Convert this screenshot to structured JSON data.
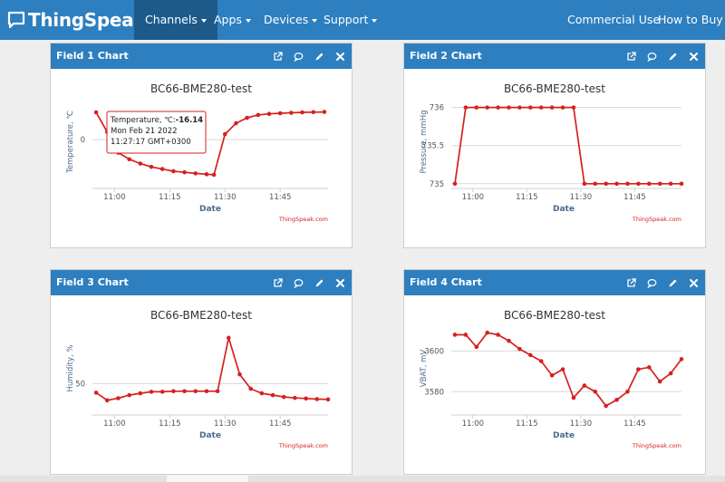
{
  "nav": {
    "brand": "ThingSpeak",
    "tm": "™",
    "items": [
      {
        "label": "Channels",
        "dropdown": true,
        "active": true
      },
      {
        "label": "Apps",
        "dropdown": true,
        "active": false
      },
      {
        "label": "Devices",
        "dropdown": true,
        "active": false
      },
      {
        "label": "Support",
        "dropdown": true,
        "active": false
      }
    ],
    "right": [
      {
        "label": "Commercial Use"
      },
      {
        "label": "How to Buy"
      }
    ]
  },
  "colors": {
    "nav": "#2d7fbf",
    "nav_active": "#1d5a8a",
    "series": "#d62020",
    "axis_text": "#4a6a8a"
  },
  "icons": [
    "external-link-icon",
    "comment-icon",
    "pencil-icon",
    "close-icon"
  ],
  "panels": [
    {
      "title": "Field 1 Chart",
      "chart_data": {
        "type": "line",
        "title": "BC66-BME280-test",
        "xlabel": "Date",
        "ylabel": "Temperature, ℃",
        "x_ticks": [
          "11:00",
          "11:15",
          "11:30",
          "11:45"
        ],
        "y_ticks": [
          "0"
        ],
        "credit": "ThingSpeak.com",
        "x": [
          "10:55",
          "10:58",
          "11:01",
          "11:04",
          "11:07",
          "11:10",
          "11:13",
          "11:16",
          "11:19",
          "11:22",
          "11:25",
          "11:27",
          "11:30",
          "11:33",
          "11:36",
          "11:39",
          "11:42",
          "11:45",
          "11:48",
          "11:51",
          "11:54",
          "11:57"
        ],
        "values": [
          12.5,
          3.5,
          -6,
          -9,
          -11,
          -12.5,
          -13.5,
          -14.5,
          -15,
          -15.5,
          -15.9,
          -16.14,
          2.5,
          7.5,
          10,
          11.3,
          11.8,
          12.1,
          12.3,
          12.5,
          12.6,
          12.7
        ],
        "tooltip": {
          "series": "Temperature, ℃:",
          "value": "-16.14",
          "date": "Mon Feb 21 2022",
          "time": "11:27:17 GMT+0300"
        }
      }
    },
    {
      "title": "Field 2 Chart",
      "chart_data": {
        "type": "line",
        "title": "BC66-BME280-test",
        "xlabel": "Date",
        "ylabel": "Pressure, mmHg",
        "x_ticks": [
          "11:00",
          "11:15",
          "11:30",
          "11:45"
        ],
        "y_ticks": [
          "736",
          "735.5",
          "735"
        ],
        "credit": "ThingSpeak.com",
        "x": [
          "10:55",
          "10:58",
          "11:01",
          "11:04",
          "11:07",
          "11:10",
          "11:13",
          "11:16",
          "11:19",
          "11:22",
          "11:25",
          "11:28",
          "11:31",
          "11:34",
          "11:37",
          "11:40",
          "11:43",
          "11:46",
          "11:49",
          "11:52",
          "11:55",
          "11:58"
        ],
        "values": [
          735,
          736,
          736,
          736,
          736,
          736,
          736,
          736,
          736,
          736,
          736,
          736,
          735,
          735,
          735,
          735,
          735,
          735,
          735,
          735,
          735,
          735
        ]
      }
    },
    {
      "title": "Field 3 Chart",
      "chart_data": {
        "type": "line",
        "title": "BC66-BME280-test",
        "xlabel": "Date",
        "ylabel": "Humidity, %",
        "x_ticks": [
          "11:00",
          "11:15",
          "11:30",
          "11:45"
        ],
        "y_ticks": [
          "50"
        ],
        "credit": "ThingSpeak.com",
        "x": [
          "10:55",
          "10:58",
          "11:01",
          "11:04",
          "11:07",
          "11:10",
          "11:13",
          "11:16",
          "11:19",
          "11:22",
          "11:25",
          "11:28",
          "11:31",
          "11:34",
          "11:37",
          "11:40",
          "11:43",
          "11:46",
          "11:49",
          "11:52",
          "11:55",
          "11:58"
        ],
        "values": [
          47,
          44.5,
          45.2,
          46.2,
          46.8,
          47.3,
          47.3,
          47.5,
          47.5,
          47.5,
          47.5,
          47.5,
          65,
          53,
          48.3,
          46.8,
          46.2,
          45.6,
          45.3,
          45.1,
          44.9,
          44.8
        ]
      }
    },
    {
      "title": "Field 4 Chart",
      "chart_data": {
        "type": "line",
        "title": "BC66-BME280-test",
        "xlabel": "Date",
        "ylabel": "VBAT, mV",
        "x_ticks": [
          "11:00",
          "11:15",
          "11:30",
          "11:45"
        ],
        "y_ticks": [
          "3600",
          "3580"
        ],
        "credit": "ThingSpeak.com",
        "x": [
          "10:55",
          "10:58",
          "11:01",
          "11:04",
          "11:07",
          "11:10",
          "11:13",
          "11:16",
          "11:19",
          "11:22",
          "11:25",
          "11:28",
          "11:31",
          "11:34",
          "11:37",
          "11:40",
          "11:43",
          "11:46",
          "11:49",
          "11:52",
          "11:55",
          "11:58"
        ],
        "values": [
          3608,
          3608,
          3602,
          3609,
          3608,
          3605,
          3601,
          3598,
          3595,
          3588,
          3591,
          3577,
          3583,
          3580,
          3573,
          3576,
          3580,
          3591,
          3592,
          3585,
          3589,
          3596
        ]
      }
    }
  ]
}
